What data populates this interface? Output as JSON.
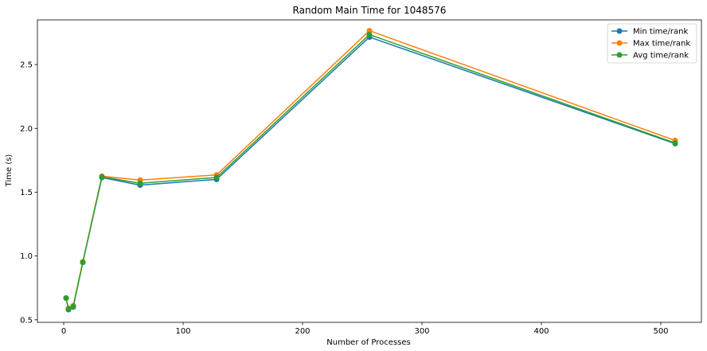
{
  "chart_data": {
    "type": "line",
    "title": "Random Main Time for 1048576",
    "xlabel": "Number of Processes",
    "ylabel": "Time (s)",
    "xlim": [
      -22,
      534
    ],
    "ylim": [
      0.48,
      2.85
    ],
    "xticks": [
      0,
      100,
      200,
      300,
      400,
      500
    ],
    "yticks": [
      0.5,
      1.0,
      1.5,
      2.0,
      2.5
    ],
    "ytick_labels": [
      "0.5",
      "1.0",
      "1.5",
      "2.0",
      "2.5"
    ],
    "grid": false,
    "legend_position": "top-right",
    "x": [
      2,
      4,
      8,
      16,
      32,
      64,
      128,
      256,
      512
    ],
    "series": [
      {
        "name": "Min time/rank",
        "color": "#1f77b4",
        "values": [
          0.67,
          0.58,
          0.6,
          0.95,
          1.615,
          1.555,
          1.6,
          2.715,
          1.88
        ]
      },
      {
        "name": "Max time/rank",
        "color": "#ff7f0e",
        "values": [
          0.67,
          0.59,
          0.61,
          0.955,
          1.625,
          1.595,
          1.635,
          2.765,
          1.905
        ]
      },
      {
        "name": "Avg time/rank",
        "color": "#2ca02c",
        "values": [
          0.67,
          0.585,
          0.605,
          0.95,
          1.62,
          1.57,
          1.615,
          2.735,
          1.885
        ]
      }
    ]
  }
}
